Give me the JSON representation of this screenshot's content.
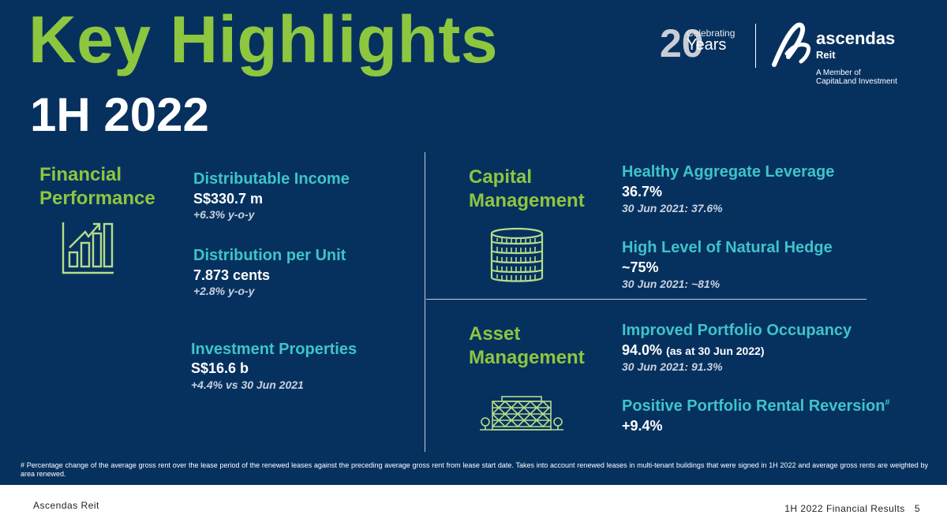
{
  "header": {
    "title": "Key Highlights",
    "subtitle": "1H 2022"
  },
  "logo": {
    "anniversary_number": "20",
    "celebrating": "Celebrating",
    "years": "Years",
    "brand_name": "ascendas",
    "brand_reit": "Reit",
    "member_line1": "A Member of",
    "member_line2": "CapitaLand Investment"
  },
  "financial": {
    "title_line1": "Financial",
    "title_line2": "Performance",
    "icon": "bar-chart-growth-icon",
    "items": [
      {
        "label": "Distributable Income",
        "value": "S$330.7 m",
        "note": "+6.3% y-o-y"
      },
      {
        "label": "Distribution per Unit",
        "value": "7.873 cents",
        "note": "+2.8% y-o-y"
      },
      {
        "label": "Investment Properties",
        "value": "S$16.6 b",
        "note": "+4.4% vs 30 Jun 2021"
      }
    ]
  },
  "capital": {
    "title_line1": "Capital",
    "title_line2": "Management",
    "icon": "coin-stack-icon",
    "items": [
      {
        "label": "Healthy Aggregate Leverage",
        "value": "36.7%",
        "note": "30 Jun 2021: 37.6%"
      },
      {
        "label": "High Level of Natural Hedge",
        "value": "~75%",
        "note": "30 Jun 2021: ~81%"
      }
    ]
  },
  "asset": {
    "title_line1": "Asset",
    "title_line2": "Management",
    "icon": "building-icon",
    "items": [
      {
        "label": "Improved Portfolio Occupancy",
        "value": "94.0%",
        "value_suffix": "(as at 30 Jun 2022)",
        "note": "30 Jun 2021: 91.3%"
      },
      {
        "label": "Positive Portfolio Rental Reversion",
        "label_mark": "#",
        "value": "+9.4%"
      }
    ]
  },
  "footnote": "# Percentage change of the average gross rent over the lease period of the renewed leases against the preceding average gross rent from lease start date. Takes into account renewed leases in multi-tenant buildings that were signed in 1H 2022 and average gross rents are weighted by area renewed.",
  "footer": {
    "left": "Ascendas Reit",
    "right": "1H 2022 Financial Results",
    "page": "5"
  },
  "colors": {
    "background": "#06315f",
    "title_green": "#8dc63f",
    "label_teal": "#3fc3c8",
    "icon_green": "#b6dd8a"
  }
}
